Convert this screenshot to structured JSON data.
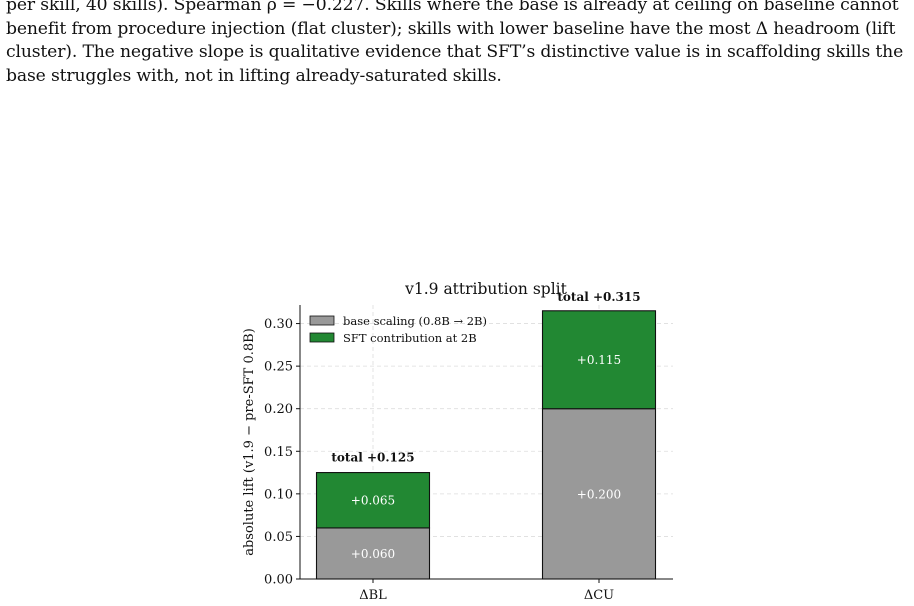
{
  "paragraph": {
    "lines": [
      "per skill, 40 skills). Spearman ρ = −0.227. Skills where the base is already at ceiling on baseline cannot",
      "benefit from procedure injection (flat cluster); skills with lower baseline have the most Δ headroom (lift",
      "cluster). The negative slope is qualitative evidence that SFT’s distinctive value is in scaffolding skills the",
      "base struggles with, not in lifting already-saturated skills."
    ]
  },
  "chart_data": {
    "type": "bar",
    "stacked": true,
    "title": "v1.9 attribution split",
    "xlabel": "",
    "ylabel": "absolute lift (v1.9 − pre-SFT 0.8B)",
    "categories": [
      "ΔBL",
      "ΔCU"
    ],
    "series": [
      {
        "name": "base scaling (0.8B → 2B)",
        "values": [
          0.06,
          0.2
        ],
        "labels": [
          "+0.060",
          "+0.200"
        ],
        "color": "#999999"
      },
      {
        "name": "SFT contribution at 2B",
        "values": [
          0.065,
          0.115
        ],
        "labels": [
          "+0.065",
          "+0.115"
        ],
        "color": "#228833"
      }
    ],
    "totals": [
      "total +0.125",
      "total +0.315"
    ],
    "ylim": [
      0,
      0.32
    ],
    "yticks": [
      0,
      0.05,
      0.1,
      0.15,
      0.2,
      0.25,
      0.3
    ],
    "ytick_labels": [
      "0.00",
      "0.05",
      "0.10",
      "0.15",
      "0.20",
      "0.25",
      "0.30"
    ],
    "grid": true,
    "legend": "top-left"
  }
}
